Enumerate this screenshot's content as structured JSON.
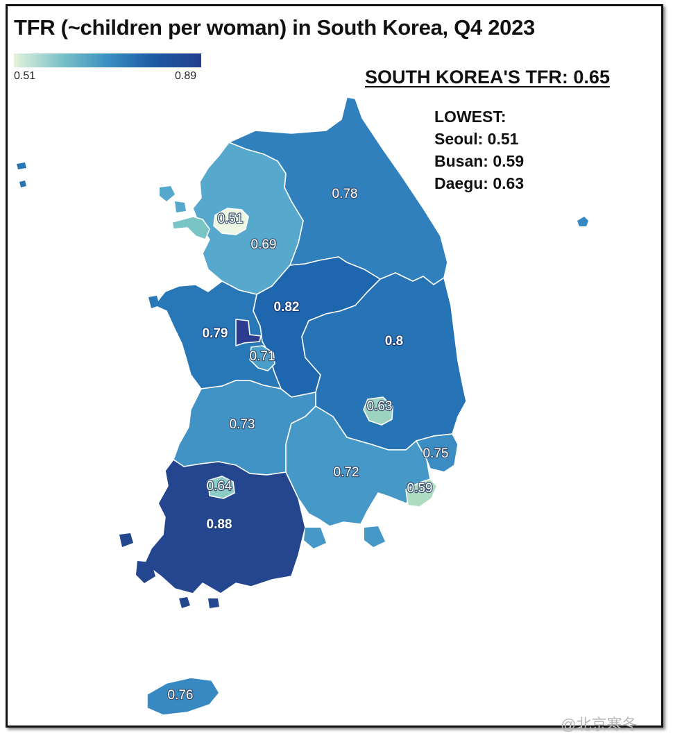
{
  "title": "TFR (~children per woman) in South Korea, Q4 2023",
  "legend": {
    "min": "0.51",
    "max": "0.89",
    "min_color": "#e4f2dc",
    "max_color": "#243d8e"
  },
  "national": "SOUTH KOREA'S TFR: 0.65",
  "lowest": {
    "heading": "LOWEST:",
    "items": [
      "Seoul: 0.51",
      "Busan: 0.59",
      "Daegu: 0.63"
    ]
  },
  "regions": {
    "gangwon": {
      "value": "0.78",
      "color": "#2f80bd"
    },
    "gyeonggi": {
      "value": "0.69",
      "color": "#56a9cc"
    },
    "seoul": {
      "value": "0.51",
      "color": "#edf7e4"
    },
    "incheon": {
      "value": "",
      "color": "#79c4c4"
    },
    "chungbuk": {
      "value": "0.82",
      "color": "#1e66ae"
    },
    "gyeongbuk": {
      "value": "0.8",
      "color": "#2673b5"
    },
    "chungnam": {
      "value": "0.79",
      "color": "#2878b8"
    },
    "sejong": {
      "value": "",
      "color": "#2c3d8f"
    },
    "daejeon": {
      "value": "0.71",
      "color": "#4a9ec9"
    },
    "daegu": {
      "value": "0.63",
      "color": "#9bd3c0"
    },
    "jeonbuk": {
      "value": "0.73",
      "color": "#4293c5"
    },
    "gyeongnam": {
      "value": "0.72",
      "color": "#4698c7"
    },
    "ulsan": {
      "value": "0.75",
      "color": "#3a8cc3"
    },
    "busan": {
      "value": "0.59",
      "color": "#aedcc3"
    },
    "gwangju": {
      "value": "0.64",
      "color": "#8dcbc6"
    },
    "jeonnam": {
      "value": "0.88",
      "color": "#23468f"
    },
    "jeju": {
      "value": "0.76",
      "color": "#3889c2"
    }
  },
  "watermark": "@北京寒冬"
}
